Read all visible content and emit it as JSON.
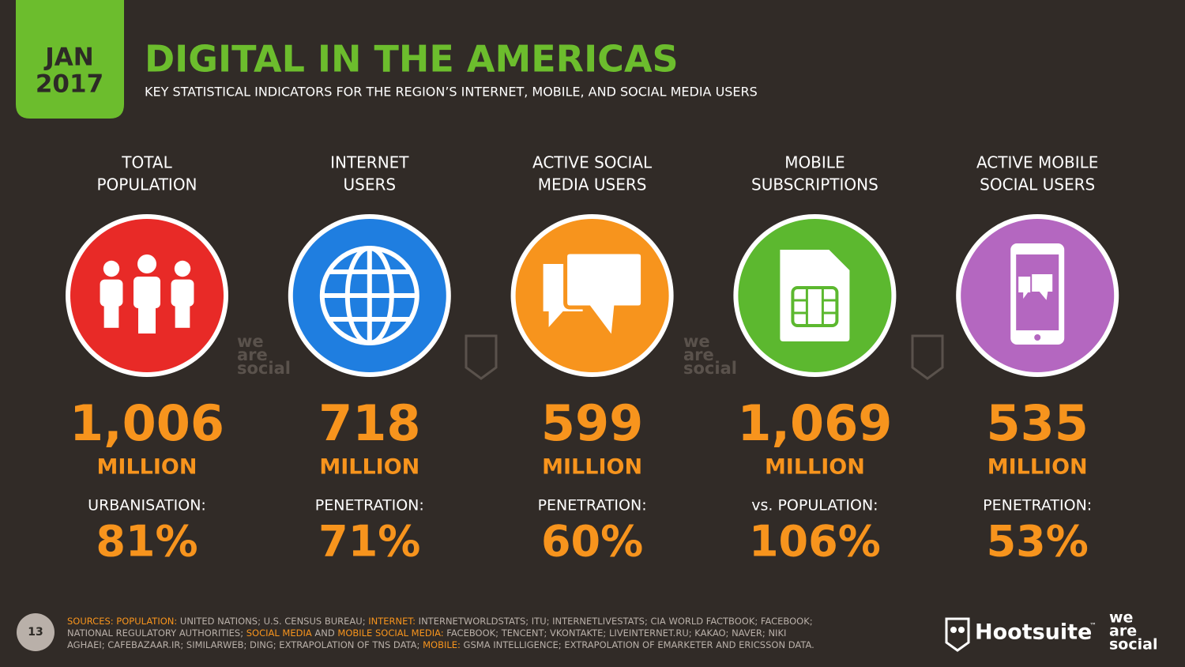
{
  "header": {
    "date": [
      "JAN",
      "2017"
    ],
    "title": "DIGITAL IN THE AMERICAS",
    "subtitle": "KEY STATISTICAL INDICATORS FOR THE REGION’S INTERNET, MOBILE, AND SOCIAL MEDIA USERS"
  },
  "columns": [
    {
      "label": [
        "TOTAL",
        "POPULATION"
      ],
      "value": "1,006",
      "unit": "MILLION",
      "sub_label": "URBANISATION:",
      "sub_value": "81%",
      "color": "#e82a27",
      "icon": "people"
    },
    {
      "label": [
        "INTERNET",
        "USERS"
      ],
      "value": "718",
      "unit": "MILLION",
      "sub_label": "PENETRATION:",
      "sub_value": "71%",
      "color": "#1f7ee0",
      "icon": "globe"
    },
    {
      "label": [
        "ACTIVE SOCIAL",
        "MEDIA USERS"
      ],
      "value": "599",
      "unit": "MILLION",
      "sub_label": "PENETRATION:",
      "sub_value": "60%",
      "color": "#f7941d",
      "icon": "chat"
    },
    {
      "label": [
        "MOBILE",
        "SUBSCRIPTIONS"
      ],
      "value": "1,069",
      "unit": "MILLION",
      "sub_label": "vs. POPULATION:",
      "sub_value": "106%",
      "color": "#5cb82f",
      "icon": "sim"
    },
    {
      "label": [
        "ACTIVE MOBILE",
        "SOCIAL USERS"
      ],
      "value": "535",
      "unit": "MILLION",
      "sub_label": "PENETRATION:",
      "sub_value": "53%",
      "color": "#b467c0",
      "icon": "phone"
    }
  ],
  "watermark": [
    "we",
    "are",
    "social"
  ],
  "footer": {
    "page": "13",
    "sources": [
      [
        {
          "text": "SOURCES: POPULATION:",
          "key": true
        },
        {
          "text": " UNITED NATIONS; U.S. CENSUS BUREAU; ",
          "key": false
        },
        {
          "text": "INTERNET:",
          "key": true
        },
        {
          "text": " INTERNETWORLDSTATS; ITU; INTERNETLIVESTATS; CIA WORLD FACTBOOK; FACEBOOK;",
          "key": false
        }
      ],
      [
        {
          "text": "NATIONAL REGULATORY AUTHORITIES; ",
          "key": false
        },
        {
          "text": "SOCIAL MEDIA",
          "key": true
        },
        {
          "text": " AND ",
          "key": false
        },
        {
          "text": "MOBILE SOCIAL MEDIA:",
          "key": true
        },
        {
          "text": " FACEBOOK; TENCENT; VKONTAKTE; LIVEINTERNET.RU; KAKAO; NAVER; NIKI",
          "key": false
        }
      ],
      [
        {
          "text": "AGHAEI; CAFEBAZAAR.IR; SIMILARWEB; DING; EXTRAPOLATION OF TNS DATA; ",
          "key": false
        },
        {
          "text": "MOBILE:",
          "key": true
        },
        {
          "text": " GSMA INTELLIGENCE; EXTRAPOLATION OF EMARKETER AND ERICSSON DATA.",
          "key": false
        }
      ]
    ],
    "logos": [
      "Hootsuite",
      "™"
    ]
  }
}
